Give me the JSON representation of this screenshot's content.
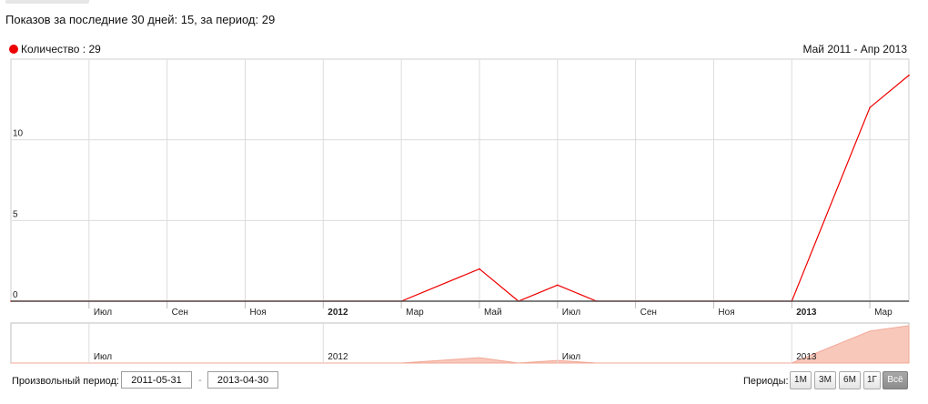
{
  "summary": "Показов за последние 30 дней: 15, за период: 29",
  "legend": {
    "label": "Количество : 29",
    "color": "#ee0000"
  },
  "range_label": "Май 2011 - Апр 2013",
  "x_ticks": [
    "Июл",
    "Сен",
    "Ноя",
    "2012",
    "Мар",
    "Май",
    "Июл",
    "Сен",
    "Ноя",
    "2013",
    "Мар"
  ],
  "nav_ticks": [
    "Июл",
    "2012",
    "Июл",
    "2013"
  ],
  "chart_data": {
    "type": "line",
    "series": [
      {
        "name": "Количество",
        "x": [
          "2011-05",
          "2012-03",
          "2012-05",
          "2012-06",
          "2012-07",
          "2012-08",
          "2013-01",
          "2013-03",
          "2013-04"
        ],
        "y": [
          0,
          0,
          2,
          0,
          1,
          0,
          0,
          12,
          14
        ]
      }
    ],
    "x_range": [
      "2011-05",
      "2013-04"
    ],
    "ylim": [
      0,
      15
    ],
    "y_ticks": [
      0,
      5,
      10
    ],
    "grid": true,
    "legend_position": "top-left"
  },
  "controls": {
    "custom_period_label": "Произвольный период:",
    "date_from": "2011-05-31",
    "date_sep": "-",
    "date_to": "2013-04-30",
    "periods_label": "Периоды:",
    "period_buttons": [
      "1М",
      "3М",
      "6М",
      "1Г",
      "Всё"
    ],
    "active_period": "Всё"
  }
}
